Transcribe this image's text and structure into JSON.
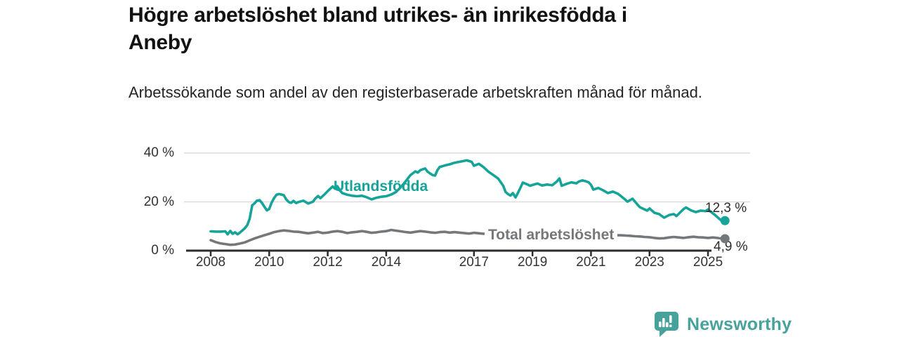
{
  "header": {
    "title_lines": [
      "Högre arbetslöshet bland utrikes- än inrikesfödda i",
      "Aneby"
    ],
    "subtitle": "Arbetssökande som andel av den registerbaserade arbetskraften månad för månad."
  },
  "branding": {
    "name": "Newsworthy",
    "logo_icon": "bar-chart-speech-bubble-icon",
    "color": "#47a29c"
  },
  "chart_data": {
    "type": "line",
    "title": "Högre arbetslöshet bland utrikes- än inrikesfödda i Aneby",
    "subtitle": "Arbetssökande som andel av den registerbaserade arbetskraften månad för månad.",
    "xlabel": "",
    "ylabel": "",
    "unit": "%",
    "xlim": [
      2007.9,
      2026.4
    ],
    "ylim": [
      0,
      42
    ],
    "grid": "horizontal",
    "legend_position": "inline-labels",
    "x_tick_years": [
      2008,
      2010,
      2012,
      2014,
      2017,
      2019,
      2021,
      2023,
      2025
    ],
    "x_tick_labels": [
      "2008",
      "2010",
      "2012",
      "2014",
      "2017",
      "2019",
      "2021",
      "2023",
      "2025"
    ],
    "y_tick_values": [
      0,
      20,
      40
    ],
    "y_tick_labels": [
      "0 %",
      "20 %",
      "40 %"
    ],
    "colors": {
      "axis": "#2d2d2d",
      "grid": "#dcdcdc"
    },
    "series": [
      {
        "name": "Utlandsfödda",
        "color": "#16a398",
        "end_label": "12,3 %",
        "end_value": 12.3,
        "points": [
          [
            2008.0,
            7.9
          ],
          [
            2008.17,
            7.8
          ],
          [
            2008.33,
            7.8
          ],
          [
            2008.5,
            7.9
          ],
          [
            2008.58,
            6.7
          ],
          [
            2008.67,
            8.1
          ],
          [
            2008.75,
            6.9
          ],
          [
            2008.83,
            7.5
          ],
          [
            2008.92,
            6.7
          ],
          [
            2009.0,
            7.4
          ],
          [
            2009.17,
            9.2
          ],
          [
            2009.25,
            10.5
          ],
          [
            2009.33,
            13.0
          ],
          [
            2009.42,
            18.6
          ],
          [
            2009.5,
            19.4
          ],
          [
            2009.58,
            20.5
          ],
          [
            2009.67,
            20.7
          ],
          [
            2009.75,
            19.6
          ],
          [
            2009.83,
            18.1
          ],
          [
            2009.92,
            16.5
          ],
          [
            2010.0,
            17.1
          ],
          [
            2010.08,
            19.6
          ],
          [
            2010.17,
            21.6
          ],
          [
            2010.25,
            22.9
          ],
          [
            2010.33,
            23.2
          ],
          [
            2010.42,
            23.0
          ],
          [
            2010.5,
            22.7
          ],
          [
            2010.58,
            21.0
          ],
          [
            2010.67,
            19.9
          ],
          [
            2010.75,
            19.6
          ],
          [
            2010.83,
            20.4
          ],
          [
            2010.92,
            19.5
          ],
          [
            2011.0,
            19.9
          ],
          [
            2011.17,
            20.5
          ],
          [
            2011.33,
            19.3
          ],
          [
            2011.5,
            20.1
          ],
          [
            2011.58,
            21.4
          ],
          [
            2011.67,
            22.4
          ],
          [
            2011.75,
            21.5
          ],
          [
            2011.92,
            23.4
          ],
          [
            2012.0,
            24.4
          ],
          [
            2012.08,
            25.3
          ],
          [
            2012.17,
            26.3
          ],
          [
            2012.25,
            25.4
          ],
          [
            2012.33,
            26.4
          ],
          [
            2012.42,
            24.6
          ],
          [
            2012.5,
            23.6
          ],
          [
            2012.67,
            22.9
          ],
          [
            2012.83,
            22.5
          ],
          [
            2013.0,
            22.3
          ],
          [
            2013.17,
            22.5
          ],
          [
            2013.33,
            21.9
          ],
          [
            2013.5,
            21.0
          ],
          [
            2013.67,
            21.7
          ],
          [
            2013.83,
            22.1
          ],
          [
            2014.0,
            22.3
          ],
          [
            2014.17,
            23.0
          ],
          [
            2014.33,
            24.0
          ],
          [
            2014.5,
            26.0
          ],
          [
            2014.67,
            28.5
          ],
          [
            2014.83,
            31.0
          ],
          [
            2015.0,
            32.5
          ],
          [
            2015.08,
            32.0
          ],
          [
            2015.17,
            33.0
          ],
          [
            2015.33,
            33.7
          ],
          [
            2015.42,
            32.3
          ],
          [
            2015.58,
            31.0
          ],
          [
            2015.67,
            30.8
          ],
          [
            2015.75,
            33.0
          ],
          [
            2015.83,
            34.3
          ],
          [
            2015.92,
            34.6
          ],
          [
            2016.0,
            34.9
          ],
          [
            2016.17,
            35.4
          ],
          [
            2016.33,
            36.0
          ],
          [
            2016.5,
            36.4
          ],
          [
            2016.67,
            36.8
          ],
          [
            2016.75,
            37.0
          ],
          [
            2016.92,
            36.4
          ],
          [
            2017.0,
            34.8
          ],
          [
            2017.17,
            35.6
          ],
          [
            2017.33,
            34.2
          ],
          [
            2017.5,
            32.3
          ],
          [
            2017.67,
            30.9
          ],
          [
            2017.83,
            29.5
          ],
          [
            2018.0,
            26.6
          ],
          [
            2018.08,
            24.1
          ],
          [
            2018.17,
            23.1
          ],
          [
            2018.25,
            22.6
          ],
          [
            2018.33,
            23.6
          ],
          [
            2018.42,
            21.8
          ],
          [
            2018.5,
            23.6
          ],
          [
            2018.58,
            25.6
          ],
          [
            2018.67,
            27.9
          ],
          [
            2018.83,
            27.1
          ],
          [
            2018.92,
            26.6
          ],
          [
            2019.0,
            26.9
          ],
          [
            2019.17,
            27.5
          ],
          [
            2019.33,
            26.7
          ],
          [
            2019.5,
            27.1
          ],
          [
            2019.67,
            26.8
          ],
          [
            2019.83,
            28.3
          ],
          [
            2019.92,
            29.6
          ],
          [
            2020.0,
            26.6
          ],
          [
            2020.17,
            27.4
          ],
          [
            2020.33,
            28.0
          ],
          [
            2020.5,
            27.6
          ],
          [
            2020.58,
            28.3
          ],
          [
            2020.7,
            28.8
          ],
          [
            2020.83,
            28.4
          ],
          [
            2020.92,
            28.0
          ],
          [
            2021.0,
            27.0
          ],
          [
            2021.08,
            25.0
          ],
          [
            2021.25,
            25.7
          ],
          [
            2021.42,
            24.7
          ],
          [
            2021.58,
            23.6
          ],
          [
            2021.75,
            24.2
          ],
          [
            2021.92,
            23.3
          ],
          [
            2022.0,
            22.6
          ],
          [
            2022.17,
            20.9
          ],
          [
            2022.25,
            20.1
          ],
          [
            2022.42,
            21.3
          ],
          [
            2022.58,
            19.0
          ],
          [
            2022.67,
            17.8
          ],
          [
            2022.83,
            16.9
          ],
          [
            2022.92,
            16.4
          ],
          [
            2023.0,
            17.3
          ],
          [
            2023.17,
            15.5
          ],
          [
            2023.33,
            15.0
          ],
          [
            2023.5,
            13.5
          ],
          [
            2023.67,
            14.6
          ],
          [
            2023.83,
            15.0
          ],
          [
            2023.92,
            14.2
          ],
          [
            2024.0,
            15.1
          ],
          [
            2024.17,
            17.1
          ],
          [
            2024.25,
            17.7
          ],
          [
            2024.42,
            16.5
          ],
          [
            2024.58,
            15.8
          ],
          [
            2024.75,
            16.4
          ],
          [
            2024.92,
            16.2
          ],
          [
            2025.0,
            16.9
          ],
          [
            2025.08,
            16.1
          ],
          [
            2025.25,
            14.5
          ],
          [
            2025.42,
            12.7
          ],
          [
            2025.5,
            11.9
          ],
          [
            2025.58,
            12.3
          ]
        ]
      },
      {
        "name": "Total arbetslöshet",
        "color": "#75787b",
        "end_label": "4,9 %",
        "end_value": 4.9,
        "points": [
          [
            2008.0,
            4.3
          ],
          [
            2008.17,
            3.5
          ],
          [
            2008.33,
            3.0
          ],
          [
            2008.5,
            2.7
          ],
          [
            2008.67,
            2.4
          ],
          [
            2008.83,
            2.5
          ],
          [
            2009.0,
            2.9
          ],
          [
            2009.17,
            3.4
          ],
          [
            2009.33,
            4.2
          ],
          [
            2009.5,
            5.0
          ],
          [
            2009.67,
            5.7
          ],
          [
            2009.83,
            6.3
          ],
          [
            2010.0,
            6.9
          ],
          [
            2010.17,
            7.6
          ],
          [
            2010.33,
            8.0
          ],
          [
            2010.5,
            8.3
          ],
          [
            2010.67,
            8.1
          ],
          [
            2010.83,
            7.8
          ],
          [
            2011.0,
            7.7
          ],
          [
            2011.17,
            7.4
          ],
          [
            2011.33,
            7.1
          ],
          [
            2011.5,
            7.4
          ],
          [
            2011.67,
            7.7
          ],
          [
            2011.83,
            7.2
          ],
          [
            2012.0,
            7.4
          ],
          [
            2012.17,
            7.8
          ],
          [
            2012.33,
            8.0
          ],
          [
            2012.5,
            7.7
          ],
          [
            2012.67,
            7.2
          ],
          [
            2012.83,
            7.5
          ],
          [
            2013.0,
            7.7
          ],
          [
            2013.17,
            8.0
          ],
          [
            2013.33,
            7.7
          ],
          [
            2013.5,
            7.3
          ],
          [
            2013.67,
            7.5
          ],
          [
            2013.83,
            7.8
          ],
          [
            2014.0,
            8.0
          ],
          [
            2014.17,
            8.5
          ],
          [
            2014.33,
            8.2
          ],
          [
            2014.5,
            7.9
          ],
          [
            2014.67,
            7.6
          ],
          [
            2014.83,
            7.4
          ],
          [
            2015.0,
            7.7
          ],
          [
            2015.17,
            8.0
          ],
          [
            2015.33,
            7.8
          ],
          [
            2015.5,
            7.5
          ],
          [
            2015.67,
            7.3
          ],
          [
            2015.83,
            7.6
          ],
          [
            2016.0,
            7.7
          ],
          [
            2016.17,
            7.4
          ],
          [
            2016.33,
            7.6
          ],
          [
            2016.5,
            7.4
          ],
          [
            2016.67,
            7.2
          ],
          [
            2016.83,
            7.0
          ],
          [
            2017.0,
            7.3
          ],
          [
            2017.17,
            7.1
          ],
          [
            2017.33,
            6.9
          ],
          [
            2017.5,
            7.1
          ],
          [
            2017.67,
            6.9
          ],
          [
            2017.83,
            6.8
          ],
          [
            2018.0,
            6.9
          ],
          [
            2018.25,
            6.7
          ],
          [
            2018.5,
            6.8
          ],
          [
            2018.75,
            6.6
          ],
          [
            2019.0,
            6.7
          ],
          [
            2019.25,
            6.6
          ],
          [
            2019.5,
            6.7
          ],
          [
            2019.75,
            6.5
          ],
          [
            2020.0,
            6.6
          ],
          [
            2020.25,
            6.7
          ],
          [
            2020.5,
            6.6
          ],
          [
            2020.75,
            6.5
          ],
          [
            2021.0,
            6.5
          ],
          [
            2021.25,
            6.4
          ],
          [
            2021.5,
            6.4
          ],
          [
            2021.75,
            6.3
          ],
          [
            2022.0,
            6.3
          ],
          [
            2022.17,
            6.2
          ],
          [
            2022.33,
            6.1
          ],
          [
            2022.5,
            5.9
          ],
          [
            2022.67,
            5.8
          ],
          [
            2022.83,
            5.6
          ],
          [
            2023.0,
            5.5
          ],
          [
            2023.17,
            5.2
          ],
          [
            2023.33,
            5.0
          ],
          [
            2023.5,
            5.1
          ],
          [
            2023.67,
            5.4
          ],
          [
            2023.83,
            5.6
          ],
          [
            2024.0,
            5.4
          ],
          [
            2024.17,
            5.2
          ],
          [
            2024.33,
            5.5
          ],
          [
            2024.5,
            5.7
          ],
          [
            2024.67,
            5.5
          ],
          [
            2024.83,
            5.4
          ],
          [
            2025.0,
            5.2
          ],
          [
            2025.17,
            5.4
          ],
          [
            2025.33,
            5.2
          ],
          [
            2025.5,
            4.8
          ],
          [
            2025.58,
            4.9
          ]
        ]
      }
    ]
  }
}
